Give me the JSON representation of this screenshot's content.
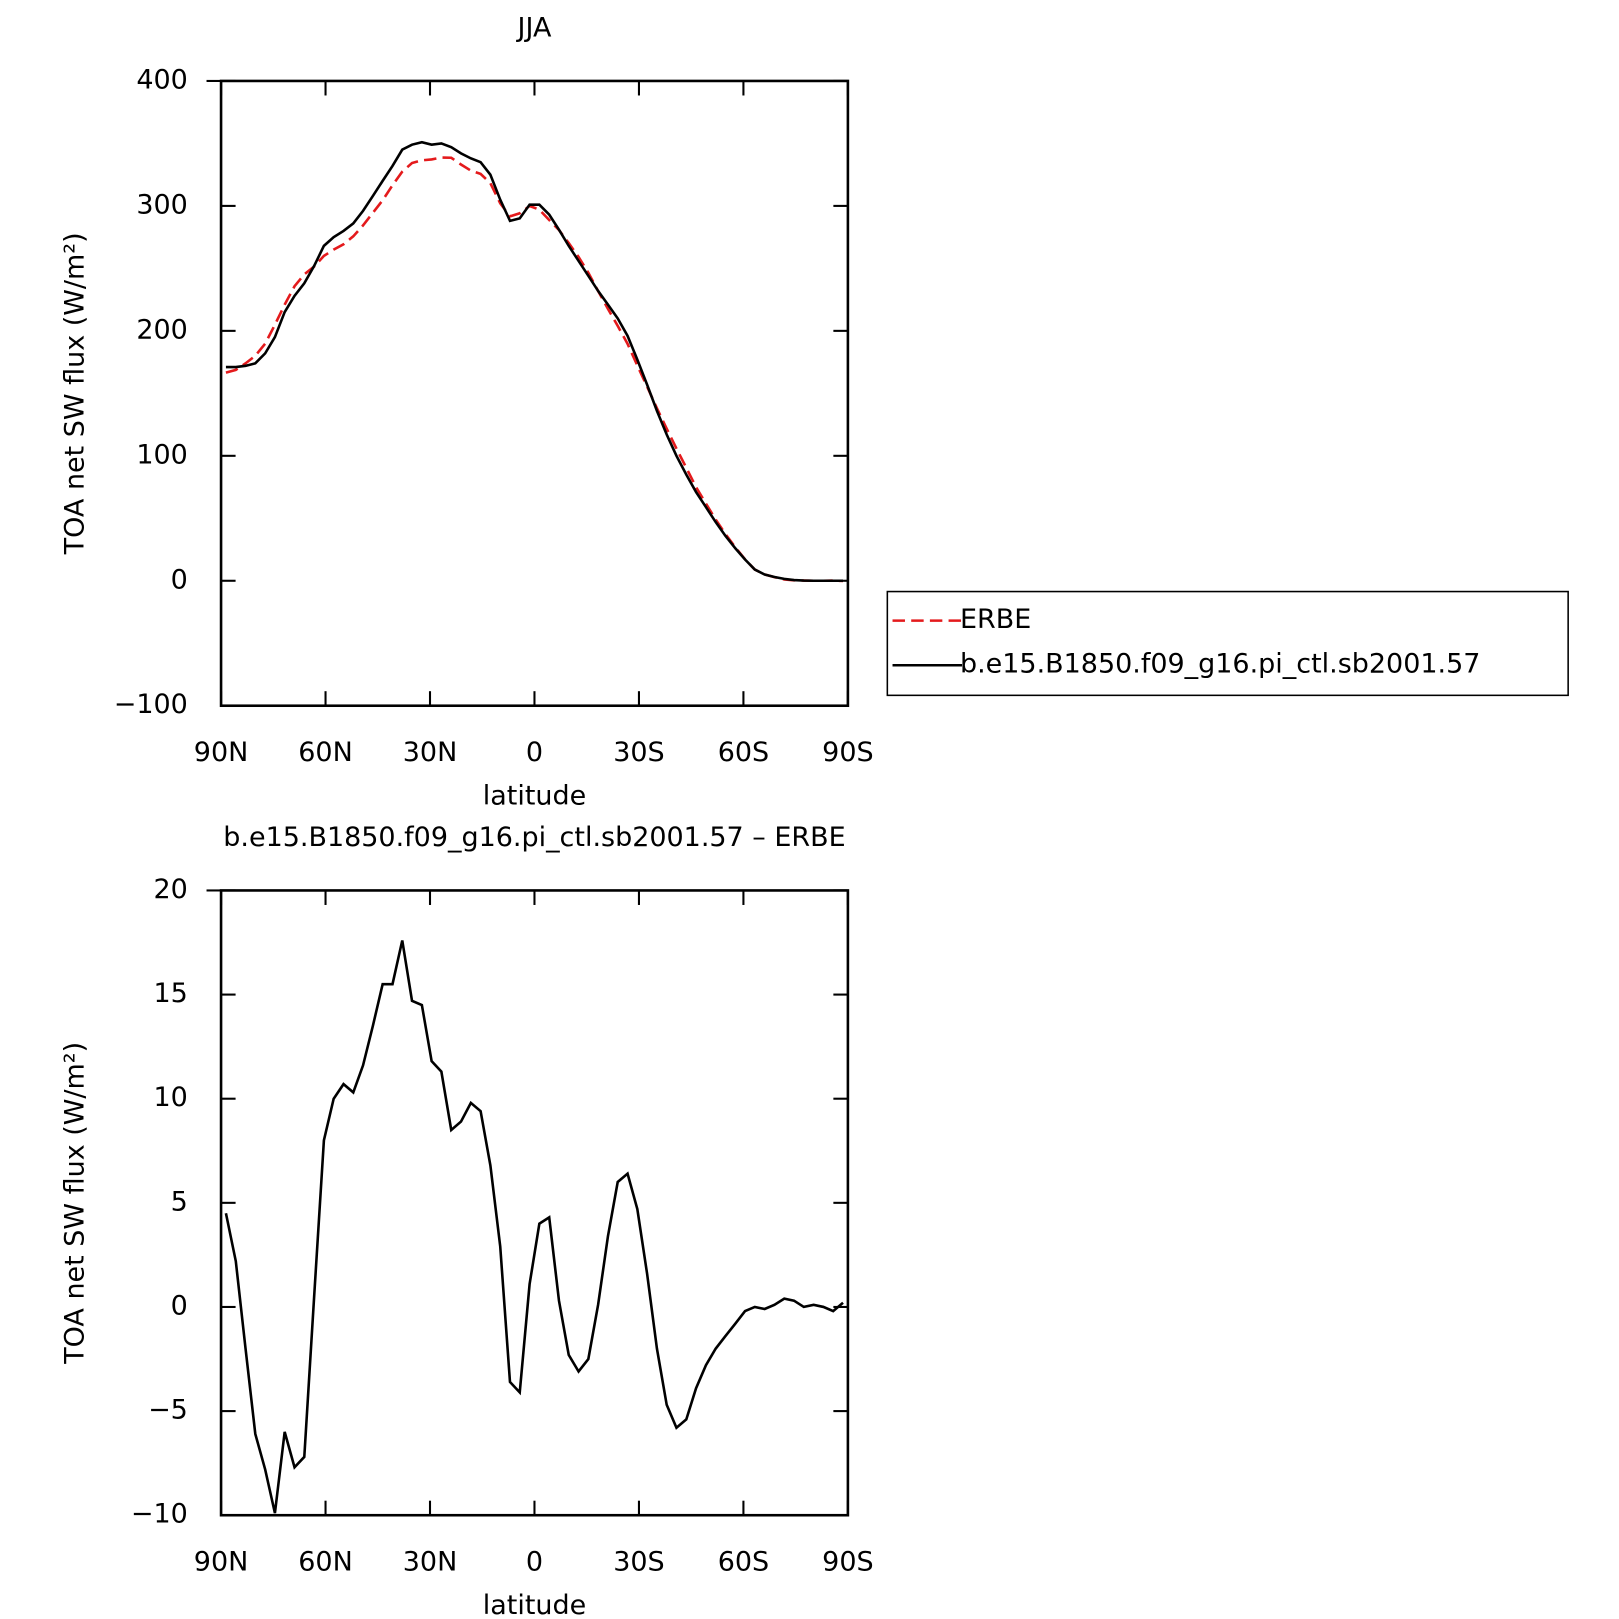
{
  "chart_data": [
    {
      "type": "line",
      "title": "JJA",
      "xlabel": "latitude",
      "ylabel": "TOA net SW flux (W/m²)",
      "x": [
        88.59,
        85.78,
        82.97,
        80.16,
        77.34,
        74.53,
        71.72,
        68.91,
        66.09,
        63.28,
        60.47,
        57.66,
        54.84,
        52.03,
        49.22,
        46.41,
        43.59,
        40.78,
        37.97,
        35.16,
        32.34,
        29.53,
        26.72,
        23.91,
        21.09,
        18.28,
        15.47,
        12.66,
        9.84,
        7.03,
        4.22,
        1.41,
        -1.41,
        -4.22,
        -7.03,
        -9.84,
        -12.66,
        -15.47,
        -18.28,
        -21.09,
        -23.91,
        -26.72,
        -29.53,
        -32.34,
        -35.16,
        -37.97,
        -40.78,
        -43.59,
        -46.41,
        -49.22,
        -52.03,
        -54.84,
        -57.66,
        -60.47,
        -63.28,
        -66.09,
        -68.91,
        -71.72,
        -74.53,
        -77.34,
        -80.16,
        -82.97,
        -85.78,
        -88.59
      ],
      "series": [
        {
          "name": "ERBE",
          "color": "#e41a1c",
          "dash": true,
          "values": [
            166.5,
            168.8,
            174,
            180.1,
            189.8,
            204.9,
            221,
            235.7,
            245.2,
            251.5,
            260,
            265,
            269.3,
            275.7,
            284.4,
            294.5,
            304.5,
            316.5,
            327.4,
            334.3,
            336.5,
            337.2,
            338.7,
            338.5,
            333.1,
            328.2,
            325.6,
            318.2,
            302.1,
            291.6,
            294.1,
            299.9,
            297,
            288.7,
            280.7,
            270.3,
            259.1,
            246.5,
            231.9,
            217.6,
            204,
            189.6,
            172.3,
            155.4,
            138,
            121.7,
            105.8,
            90.4,
            74.9,
            61.8,
            49,
            37.4,
            26.8,
            17.2,
            9,
            5.1,
            2.9,
            1.1,
            0.3,
            0.2,
            0,
            0,
            0.2,
            -0.2
          ]
        },
        {
          "name": "b.e15.B1850.f09_g16.pi_ctl.sb2001.57",
          "color": "#000000",
          "dash": false,
          "values": [
            171,
            171,
            172,
            174,
            182,
            195,
            215,
            228,
            238,
            252,
            268,
            275,
            280,
            286,
            296,
            308,
            320,
            332,
            345,
            349,
            351,
            349,
            350,
            347,
            342,
            338,
            335,
            325,
            305,
            288,
            290,
            301,
            301,
            293,
            281,
            268,
            256,
            244,
            232,
            221,
            210,
            196,
            177,
            157,
            136,
            117,
            100,
            85,
            71,
            59,
            47,
            36,
            26,
            17,
            9,
            5,
            3,
            1.5,
            0.6,
            0.2,
            0,
            0,
            0,
            0
          ]
        }
      ],
      "xlim": [
        90,
        -90
      ],
      "xticks": [
        {
          "value": 90,
          "label": "90N"
        },
        {
          "value": 60,
          "label": "60N"
        },
        {
          "value": 30,
          "label": "30N"
        },
        0,
        {
          "value": -30,
          "label": "30S"
        },
        {
          "value": -60,
          "label": "60S"
        },
        {
          "value": -90,
          "label": "90S"
        }
      ],
      "ylim": [
        -100,
        400
      ],
      "yticks": [
        {
          "value": -100,
          "label": "−100"
        },
        0,
        100,
        200,
        300,
        400
      ],
      "legend": "right"
    },
    {
      "type": "line",
      "title": "b.e15.B1850.f09_g16.pi_ctl.sb2001.57 – ERBE",
      "xlabel": "latitude",
      "ylabel": "TOA net SW flux (W/m²)",
      "x": [
        88.59,
        85.78,
        82.97,
        80.16,
        77.34,
        74.53,
        71.72,
        68.91,
        66.09,
        63.28,
        60.47,
        57.66,
        54.84,
        52.03,
        49.22,
        46.41,
        43.59,
        40.78,
        37.97,
        35.16,
        32.34,
        29.53,
        26.72,
        23.91,
        21.09,
        18.28,
        15.47,
        12.66,
        9.84,
        7.03,
        4.22,
        1.41,
        -1.41,
        -4.22,
        -7.03,
        -9.84,
        -12.66,
        -15.47,
        -18.28,
        -21.09,
        -23.91,
        -26.72,
        -29.53,
        -32.34,
        -35.16,
        -37.97,
        -40.78,
        -43.59,
        -46.41,
        -49.22,
        -52.03,
        -54.84,
        -57.66,
        -60.47,
        -63.28,
        -66.09,
        -68.91,
        -71.72,
        -74.53,
        -77.34,
        -80.16,
        -82.97,
        -85.78,
        -88.59
      ],
      "series": [
        {
          "color": "#000000",
          "dash": false,
          "values": [
            4.5,
            2.2,
            -2,
            -6.1,
            -7.8,
            -9.9,
            -6,
            -7.7,
            -7.2,
            0.5,
            8,
            10,
            10.7,
            10.3,
            11.6,
            13.5,
            15.5,
            15.5,
            17.6,
            14.7,
            14.5,
            11.8,
            11.3,
            8.5,
            8.9,
            9.8,
            9.4,
            6.8,
            2.9,
            -3.6,
            -4.1,
            1.1,
            4,
            4.3,
            0.3,
            -2.3,
            -3.1,
            -2.5,
            0.1,
            3.4,
            6,
            6.4,
            4.7,
            1.6,
            -2,
            -4.7,
            -5.8,
            -5.4,
            -3.9,
            -2.8,
            -2,
            -1.4,
            -0.8,
            -0.2,
            0,
            -0.1,
            0.1,
            0.4,
            0.3,
            0,
            0.1,
            0,
            -0.2,
            0.2
          ]
        }
      ],
      "xlim": [
        90,
        -90
      ],
      "xticks": [
        {
          "value": 90,
          "label": "90N"
        },
        {
          "value": 60,
          "label": "60N"
        },
        {
          "value": 30,
          "label": "30N"
        },
        0,
        {
          "value": -30,
          "label": "30S"
        },
        {
          "value": -60,
          "label": "60S"
        },
        {
          "value": -90,
          "label": "90S"
        }
      ],
      "ylim": [
        -10,
        20
      ],
      "yticks": [
        {
          "value": -10,
          "label": "−10"
        },
        {
          "value": -5,
          "label": "−5"
        },
        0,
        5,
        10,
        15,
        20
      ]
    }
  ]
}
